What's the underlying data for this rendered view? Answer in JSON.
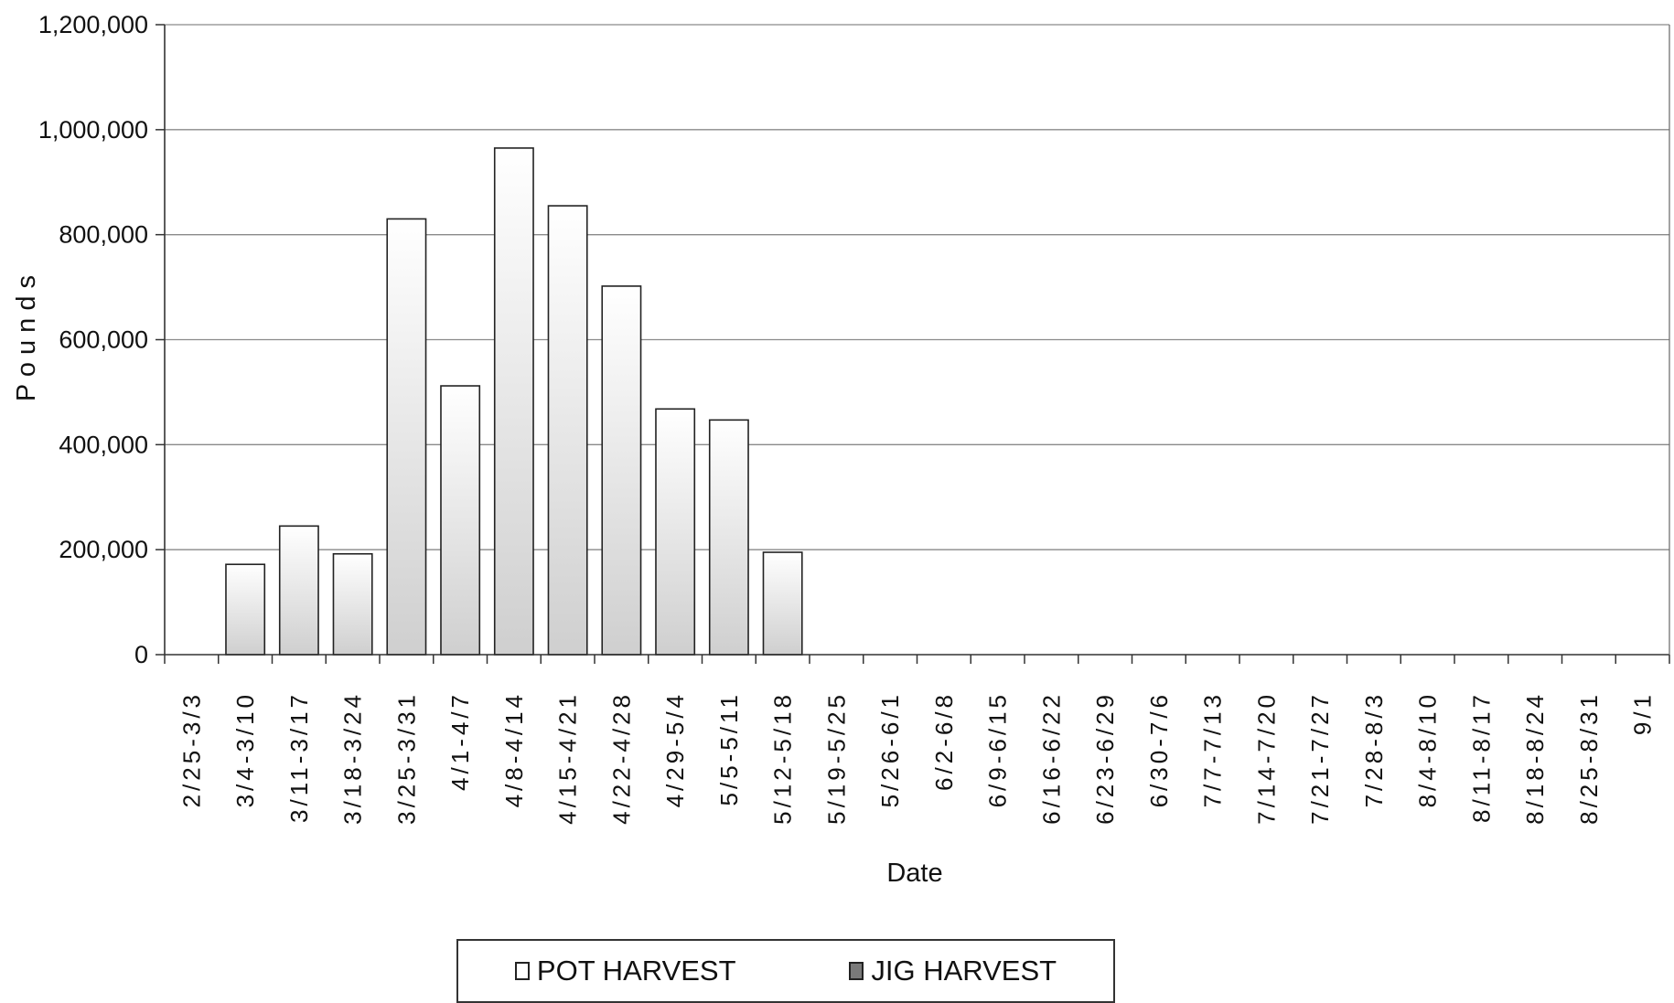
{
  "chart_data": {
    "type": "bar",
    "title": "",
    "xlabel": "Date",
    "ylabel": "P o u n d s",
    "ylim": [
      0,
      1200000
    ],
    "yticks": [
      "0",
      "200,000",
      "400,000",
      "600,000",
      "800,000",
      "1,000,000",
      "1,200,000"
    ],
    "grid": true,
    "legend_position": "bottom-center",
    "categories": [
      "2/25-3/3",
      "3/4-3/10",
      "3/11-3/17",
      "3/18-3/24",
      "3/25-3/31",
      "4/1-4/7",
      "4/8-4/14",
      "4/15-4/21",
      "4/22-4/28",
      "4/29-5/4",
      "5/5-5/11",
      "5/12-5/18",
      "5/19-5/25",
      "5/26-6/1",
      "6/2-6/8",
      "6/9-6/15",
      "6/16-6/22",
      "6/23-6/29",
      "6/30-7/6",
      "7/7-7/13",
      "7/14-7/20",
      "7/21-7/27",
      "7/28-8/3",
      "8/4-8/10",
      "8/11-8/17",
      "8/18-8/24",
      "8/25-8/31",
      "9/1"
    ],
    "series": [
      {
        "name": "POT HARVEST",
        "color": "#ffffff",
        "values": [
          0,
          172000,
          245000,
          192000,
          830000,
          512000,
          965000,
          855000,
          702000,
          468000,
          447000,
          195000,
          0,
          0,
          0,
          0,
          0,
          0,
          0,
          0,
          0,
          0,
          0,
          0,
          0,
          0,
          0,
          0
        ]
      },
      {
        "name": "JIG HARVEST",
        "color": "#7a7a7a",
        "values": [
          0,
          0,
          0,
          0,
          0,
          0,
          0,
          0,
          0,
          0,
          0,
          0,
          0,
          0,
          0,
          0,
          0,
          0,
          0,
          0,
          0,
          0,
          0,
          0,
          0,
          0,
          0,
          0
        ]
      }
    ]
  }
}
